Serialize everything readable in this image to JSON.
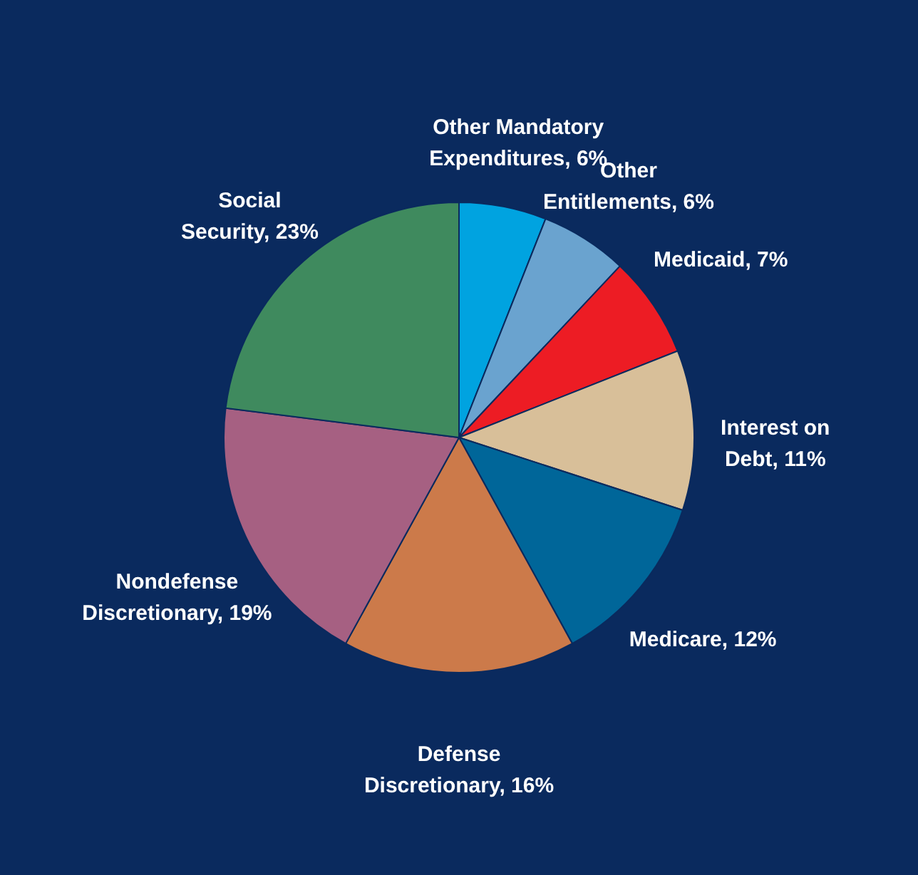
{
  "chart_data": {
    "type": "pie",
    "categories": [
      "Other Mandatory Expenditures",
      "Other Entitlements",
      "Medicaid",
      "Interest on Debt",
      "Medicare",
      "Defense Discretionary",
      "Nondefense Discretionary",
      "Social Security"
    ],
    "values": [
      6,
      6,
      7,
      11,
      12,
      16,
      19,
      23
    ],
    "value_labels": [
      "6%",
      "6%",
      "7%",
      "11%",
      "12%",
      "16%",
      "19%",
      "23%"
    ],
    "colors": [
      "#00a3e0",
      "#6aa3cf",
      "#ed1c24",
      "#d8bf99",
      "#006699",
      "#cc7a4a",
      "#a66082",
      "#3f8a5e"
    ]
  }
}
